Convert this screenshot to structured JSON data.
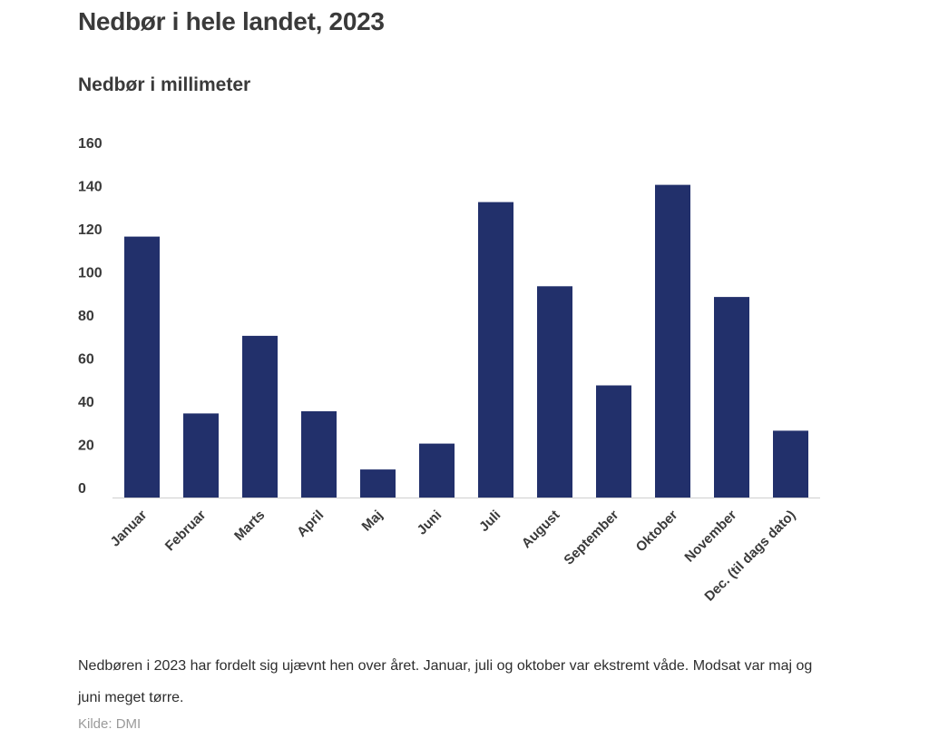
{
  "header": {
    "title": "Nedbør i hele landet, 2023"
  },
  "chart_data": {
    "type": "bar",
    "title": "Nedbør i millimeter",
    "categories": [
      "Januar",
      "Februar",
      "Marts",
      "April",
      "Maj",
      "Juni",
      "Juli",
      "August",
      "September",
      "Oktober",
      "November",
      "Dec. (til dags dato)"
    ],
    "values": [
      121,
      39,
      75,
      40,
      13,
      25,
      137,
      98,
      52,
      145,
      93,
      31
    ],
    "ylim": [
      0,
      160
    ],
    "yticks": [
      "0",
      "20",
      "40",
      "60",
      "80",
      "100",
      "120",
      "140",
      "160"
    ],
    "xlabel": "",
    "ylabel": "",
    "grid": false,
    "legend": "none",
    "bar_color": "#22306b"
  },
  "footer": {
    "description": "Nedbøren i 2023 har fordelt sig ujævnt hen over året. Januar, juli og oktober var ekstremt våde. Modsat var maj og juni meget tørre.",
    "source": "Kilde: DMI"
  }
}
